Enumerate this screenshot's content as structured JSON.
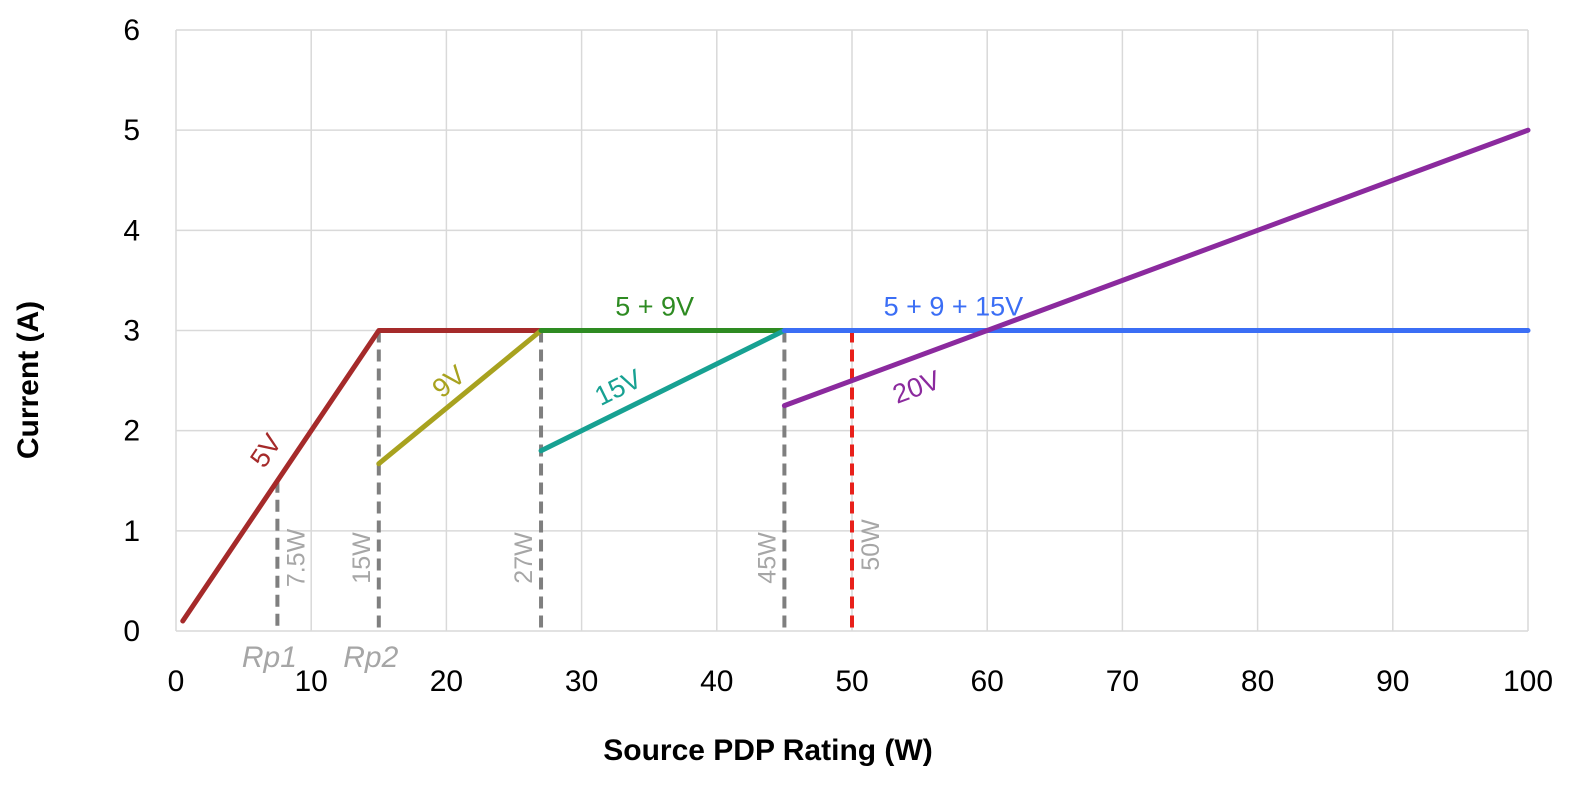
{
  "chart_data": {
    "type": "line",
    "title": "",
    "xlabel": "Source PDP Rating (W)",
    "ylabel": "Current (A)",
    "xlim": [
      0,
      100
    ],
    "ylim": [
      0,
      6
    ],
    "x_ticks": [
      "0",
      "10",
      "20",
      "30",
      "40",
      "50",
      "60",
      "70",
      "80",
      "90",
      "100"
    ],
    "y_ticks": [
      "0",
      "1",
      "2",
      "3",
      "4",
      "5",
      "6"
    ],
    "grid": true,
    "legend": "none",
    "series": [
      {
        "name": "5V",
        "color": "#a52a2a",
        "points": [
          [
            0.5,
            0.1
          ],
          [
            15,
            3
          ],
          [
            27,
            3
          ]
        ]
      },
      {
        "name": "9V",
        "color": "#a8a21f",
        "points": [
          [
            15,
            1.67
          ],
          [
            27,
            3
          ]
        ]
      },
      {
        "name": "5 + 9V",
        "color": "#2e8b22",
        "points": [
          [
            27,
            3
          ],
          [
            45,
            3
          ]
        ]
      },
      {
        "name": "15V",
        "color": "#17a192",
        "points": [
          [
            27,
            1.8
          ],
          [
            45,
            3
          ]
        ]
      },
      {
        "name": "5 + 9 + 15V",
        "color": "#3b6ef5",
        "points": [
          [
            45,
            3
          ],
          [
            100,
            3
          ]
        ]
      },
      {
        "name": "20V",
        "color": "#8b2a9e",
        "points": [
          [
            45,
            2.25
          ],
          [
            100,
            5
          ]
        ]
      }
    ],
    "markers": [
      {
        "x": 7.5,
        "label": "7.5W",
        "color": "#7f7f7f",
        "top": 1.5,
        "sub_label": "Rp1"
      },
      {
        "x": 15,
        "label": "15W",
        "color": "#7f7f7f",
        "top": 3,
        "sub_label": "Rp2"
      },
      {
        "x": 27,
        "label": "27W",
        "color": "#7f7f7f",
        "top": 3,
        "sub_label": ""
      },
      {
        "x": 45,
        "label": "45W",
        "color": "#7f7f7f",
        "top": 3,
        "sub_label": ""
      },
      {
        "x": 50,
        "label": "50W",
        "color": "#e8201a",
        "top": 3,
        "sub_label": ""
      }
    ]
  }
}
